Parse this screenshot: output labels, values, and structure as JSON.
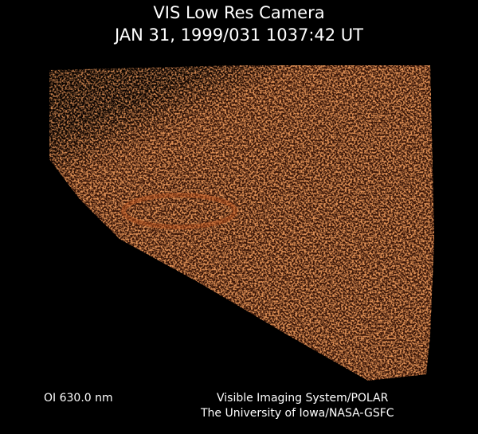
{
  "header": {
    "title": "VIS Low Res Camera",
    "timestamp": "JAN 31, 1999/031 1037:42 UT"
  },
  "footer": {
    "filter": "OI  630.0 nm",
    "credit_line1": "Visible Imaging System/POLAR",
    "credit_line2": "The University of Iowa/NASA-GSFC"
  },
  "colors": {
    "background": "#000000",
    "emission": "#c8501e"
  }
}
